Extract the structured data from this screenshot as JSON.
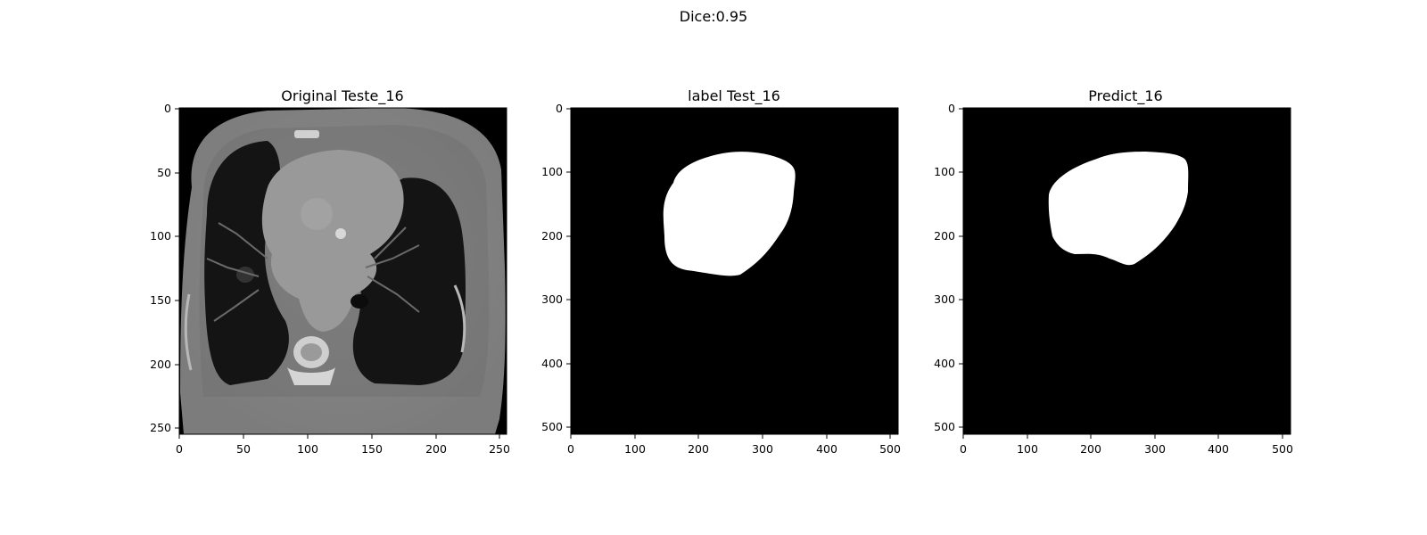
{
  "figure": {
    "suptitle": "Dice:0.95"
  },
  "panels": [
    {
      "title": "Original Teste_16",
      "image": "ct-scan-grayscale",
      "x_ticks": [
        "0",
        "50",
        "100",
        "150",
        "200",
        "250"
      ],
      "y_ticks": [
        "0",
        "50",
        "100",
        "150",
        "200",
        "250"
      ],
      "x_range": [
        0,
        255
      ],
      "y_range": [
        0,
        255
      ]
    },
    {
      "title": "label Test_16",
      "image": "binary-mask",
      "x_ticks": [
        "0",
        "100",
        "200",
        "300",
        "400",
        "500"
      ],
      "y_ticks": [
        "0",
        "100",
        "200",
        "300",
        "400",
        "500"
      ],
      "x_range": [
        0,
        511
      ],
      "y_range": [
        0,
        511
      ]
    },
    {
      "title": "Predict_16",
      "image": "binary-mask",
      "x_ticks": [
        "0",
        "100",
        "200",
        "300",
        "400",
        "500"
      ],
      "y_ticks": [
        "0",
        "100",
        "200",
        "300",
        "400",
        "500"
      ],
      "x_range": [
        0,
        511
      ],
      "y_range": [
        0,
        511
      ]
    }
  ]
}
